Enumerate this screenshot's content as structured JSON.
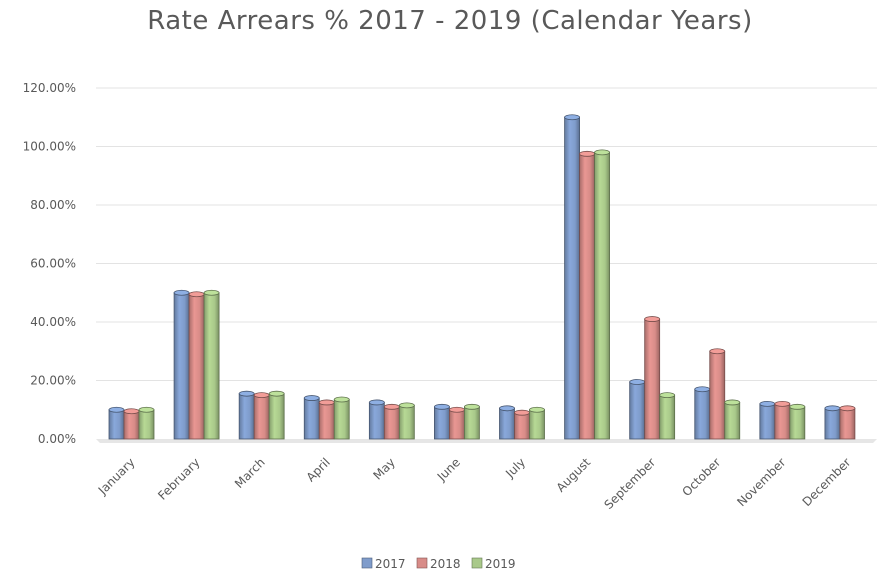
{
  "chart_data": {
    "type": "bar",
    "title": "Rate Arrears % 2017 - 2019 (Calendar Years)",
    "categories": [
      "January",
      "February",
      "March",
      "April",
      "May",
      "June",
      "July",
      "August",
      "September",
      "October",
      "November",
      "December"
    ],
    "series": [
      {
        "name": "2017",
        "color": "#7f9ccb",
        "values": [
          10,
          50,
          15.5,
          14,
          12.5,
          11,
          10.5,
          110,
          19.5,
          17,
          12,
          10.5
        ]
      },
      {
        "name": "2018",
        "color": "#d88c88",
        "values": [
          9.5,
          49.5,
          15,
          12.5,
          11,
          10,
          9,
          97.5,
          41,
          30,
          12,
          10.5
        ]
      },
      {
        "name": "2019",
        "color": "#a9c98a",
        "values": [
          10,
          50,
          15.5,
          13.5,
          11.5,
          11,
          10,
          98,
          15,
          12.5,
          11,
          null
        ]
      }
    ],
    "yticks": [
      "0.00%",
      "20.00%",
      "40.00%",
      "60.00%",
      "80.00%",
      "100.00%",
      "120.00%"
    ],
    "ylim": [
      0,
      120
    ],
    "grid": true,
    "legend_position": "bottom"
  }
}
